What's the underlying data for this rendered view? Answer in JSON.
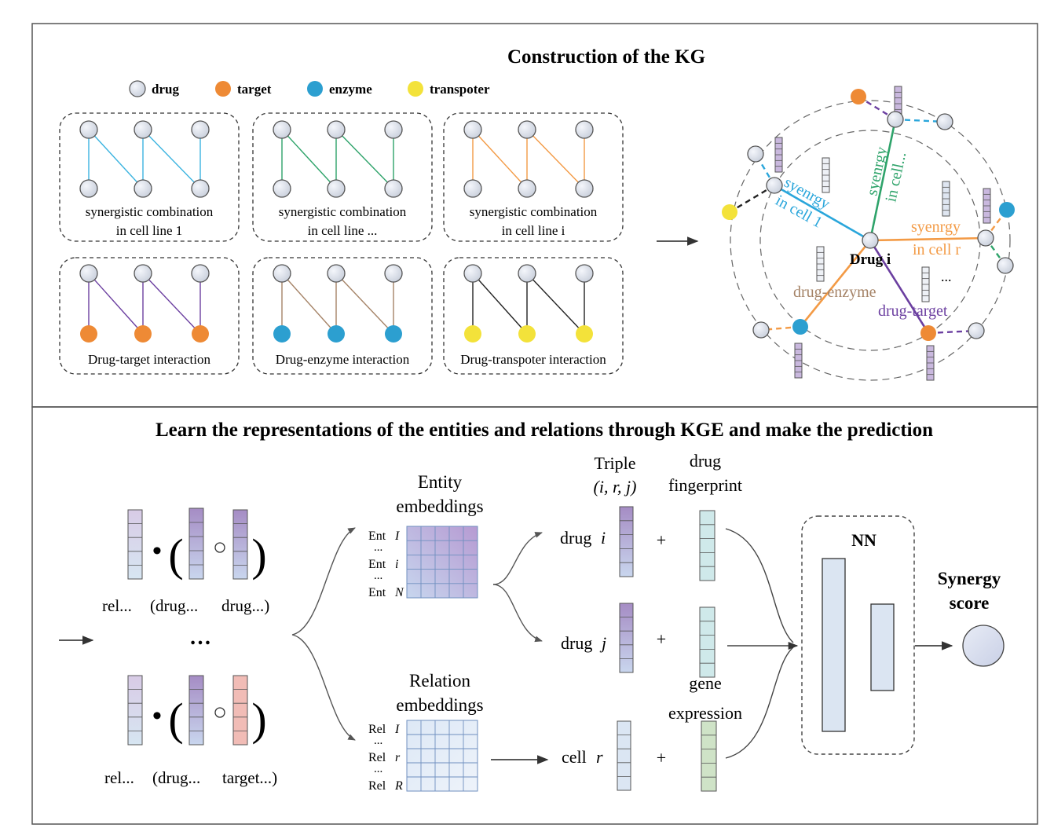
{
  "top_title": "Construction of the KG",
  "legend": [
    {
      "label": "drug",
      "color": "#dde3ec"
    },
    {
      "label": "target",
      "color": "#ee8a35"
    },
    {
      "label": "enzyme",
      "color": "#2c9fd0"
    },
    {
      "label": "transpoter",
      "color": "#f3e23a"
    }
  ],
  "subgraphs": [
    {
      "line1": "synergistic combination",
      "line2": "in cell line 1",
      "edge_color": "#3cb4e0",
      "bottom_color": "#dde3ec"
    },
    {
      "line1": "synergistic combination",
      "line2": "in cell line ...",
      "edge_color": "#2ea36a",
      "bottom_color": "#dde3ec"
    },
    {
      "line1": "synergistic combination",
      "line2": "in cell line i",
      "edge_color": "#f39a45",
      "bottom_color": "#dde3ec"
    },
    {
      "line1": "Drug-target interaction",
      "line2": "",
      "edge_color": "#6b3fa0",
      "bottom_color": "#ee8a35"
    },
    {
      "line1": "Drug-enzyme interaction",
      "line2": "",
      "edge_color": "#a58367",
      "bottom_color": "#2c9fd0"
    },
    {
      "line1": "Drug-transpoter interaction",
      "line2": "",
      "edge_color": "#222222",
      "bottom_color": "#f3e23a"
    }
  ],
  "kg": {
    "center_label": "Drug i",
    "rel_cell1_line1": "syenrgy",
    "rel_cell1_line2": "in cell 1",
    "rel_celldots_line1": "syenrgy",
    "rel_celldots_line2": "in cell...",
    "rel_cellr_line1": "syenrgy",
    "rel_cellr_line2": "in cell r",
    "rel_enzyme": "drug-enzyme",
    "rel_target": "drug-target",
    "ellipsis": "..."
  },
  "bottom_title": "Learn the representations of the entities and relations through KGE and make the prediction",
  "score_block": {
    "ellipsis": "…",
    "row1_label_a": "rel...",
    "row1_label_b": "(drug...",
    "row1_label_c": "drug...)",
    "row2_label_a": "rel...",
    "row2_label_b": "(drug...",
    "row2_label_c": "target...)",
    "dot": "•",
    "paren_open": "(",
    "paren_close": ")"
  },
  "entity_embeddings": {
    "title_l1": "Entity",
    "title_l2": "embeddings",
    "rows": [
      {
        "prefix": "Ent",
        "var": "I"
      },
      {
        "prefix": "",
        "var": "..."
      },
      {
        "prefix": "Ent",
        "var": "i"
      },
      {
        "prefix": "",
        "var": "..."
      },
      {
        "prefix": "Ent",
        "var": "N"
      }
    ]
  },
  "relation_embeddings": {
    "title_l1": "Relation",
    "title_l2": "embeddings",
    "rows": [
      {
        "prefix": "Rel",
        "var": "I"
      },
      {
        "prefix": "",
        "var": "..."
      },
      {
        "prefix": "Rel",
        "var": "r"
      },
      {
        "prefix": "",
        "var": "..."
      },
      {
        "prefix": "Rel",
        "var": "R"
      }
    ]
  },
  "triple": {
    "line1": "Triple",
    "line2": "(i, r, j)"
  },
  "fingerprint": {
    "line1": "drug",
    "line2": "fingerprint"
  },
  "gene_expr": {
    "line1": "gene",
    "line2": "expression"
  },
  "inputs": [
    {
      "prefix": "drug",
      "var": "i"
    },
    {
      "prefix": "drug",
      "var": "j"
    },
    {
      "prefix": "cell",
      "var": "r"
    }
  ],
  "plus": "+",
  "nn_label": "NN",
  "output": {
    "line1": "Synergy",
    "line2": "score"
  },
  "colors": {
    "purple_light": "#dcd0e8",
    "purple_dark": "#a58cc4",
    "blue_light": "#d6e2f0",
    "teal": "#cfe9ea",
    "green": "#cfe3c7",
    "pink": "#f1bcb6",
    "grid_blue": "#6f8fbf"
  }
}
